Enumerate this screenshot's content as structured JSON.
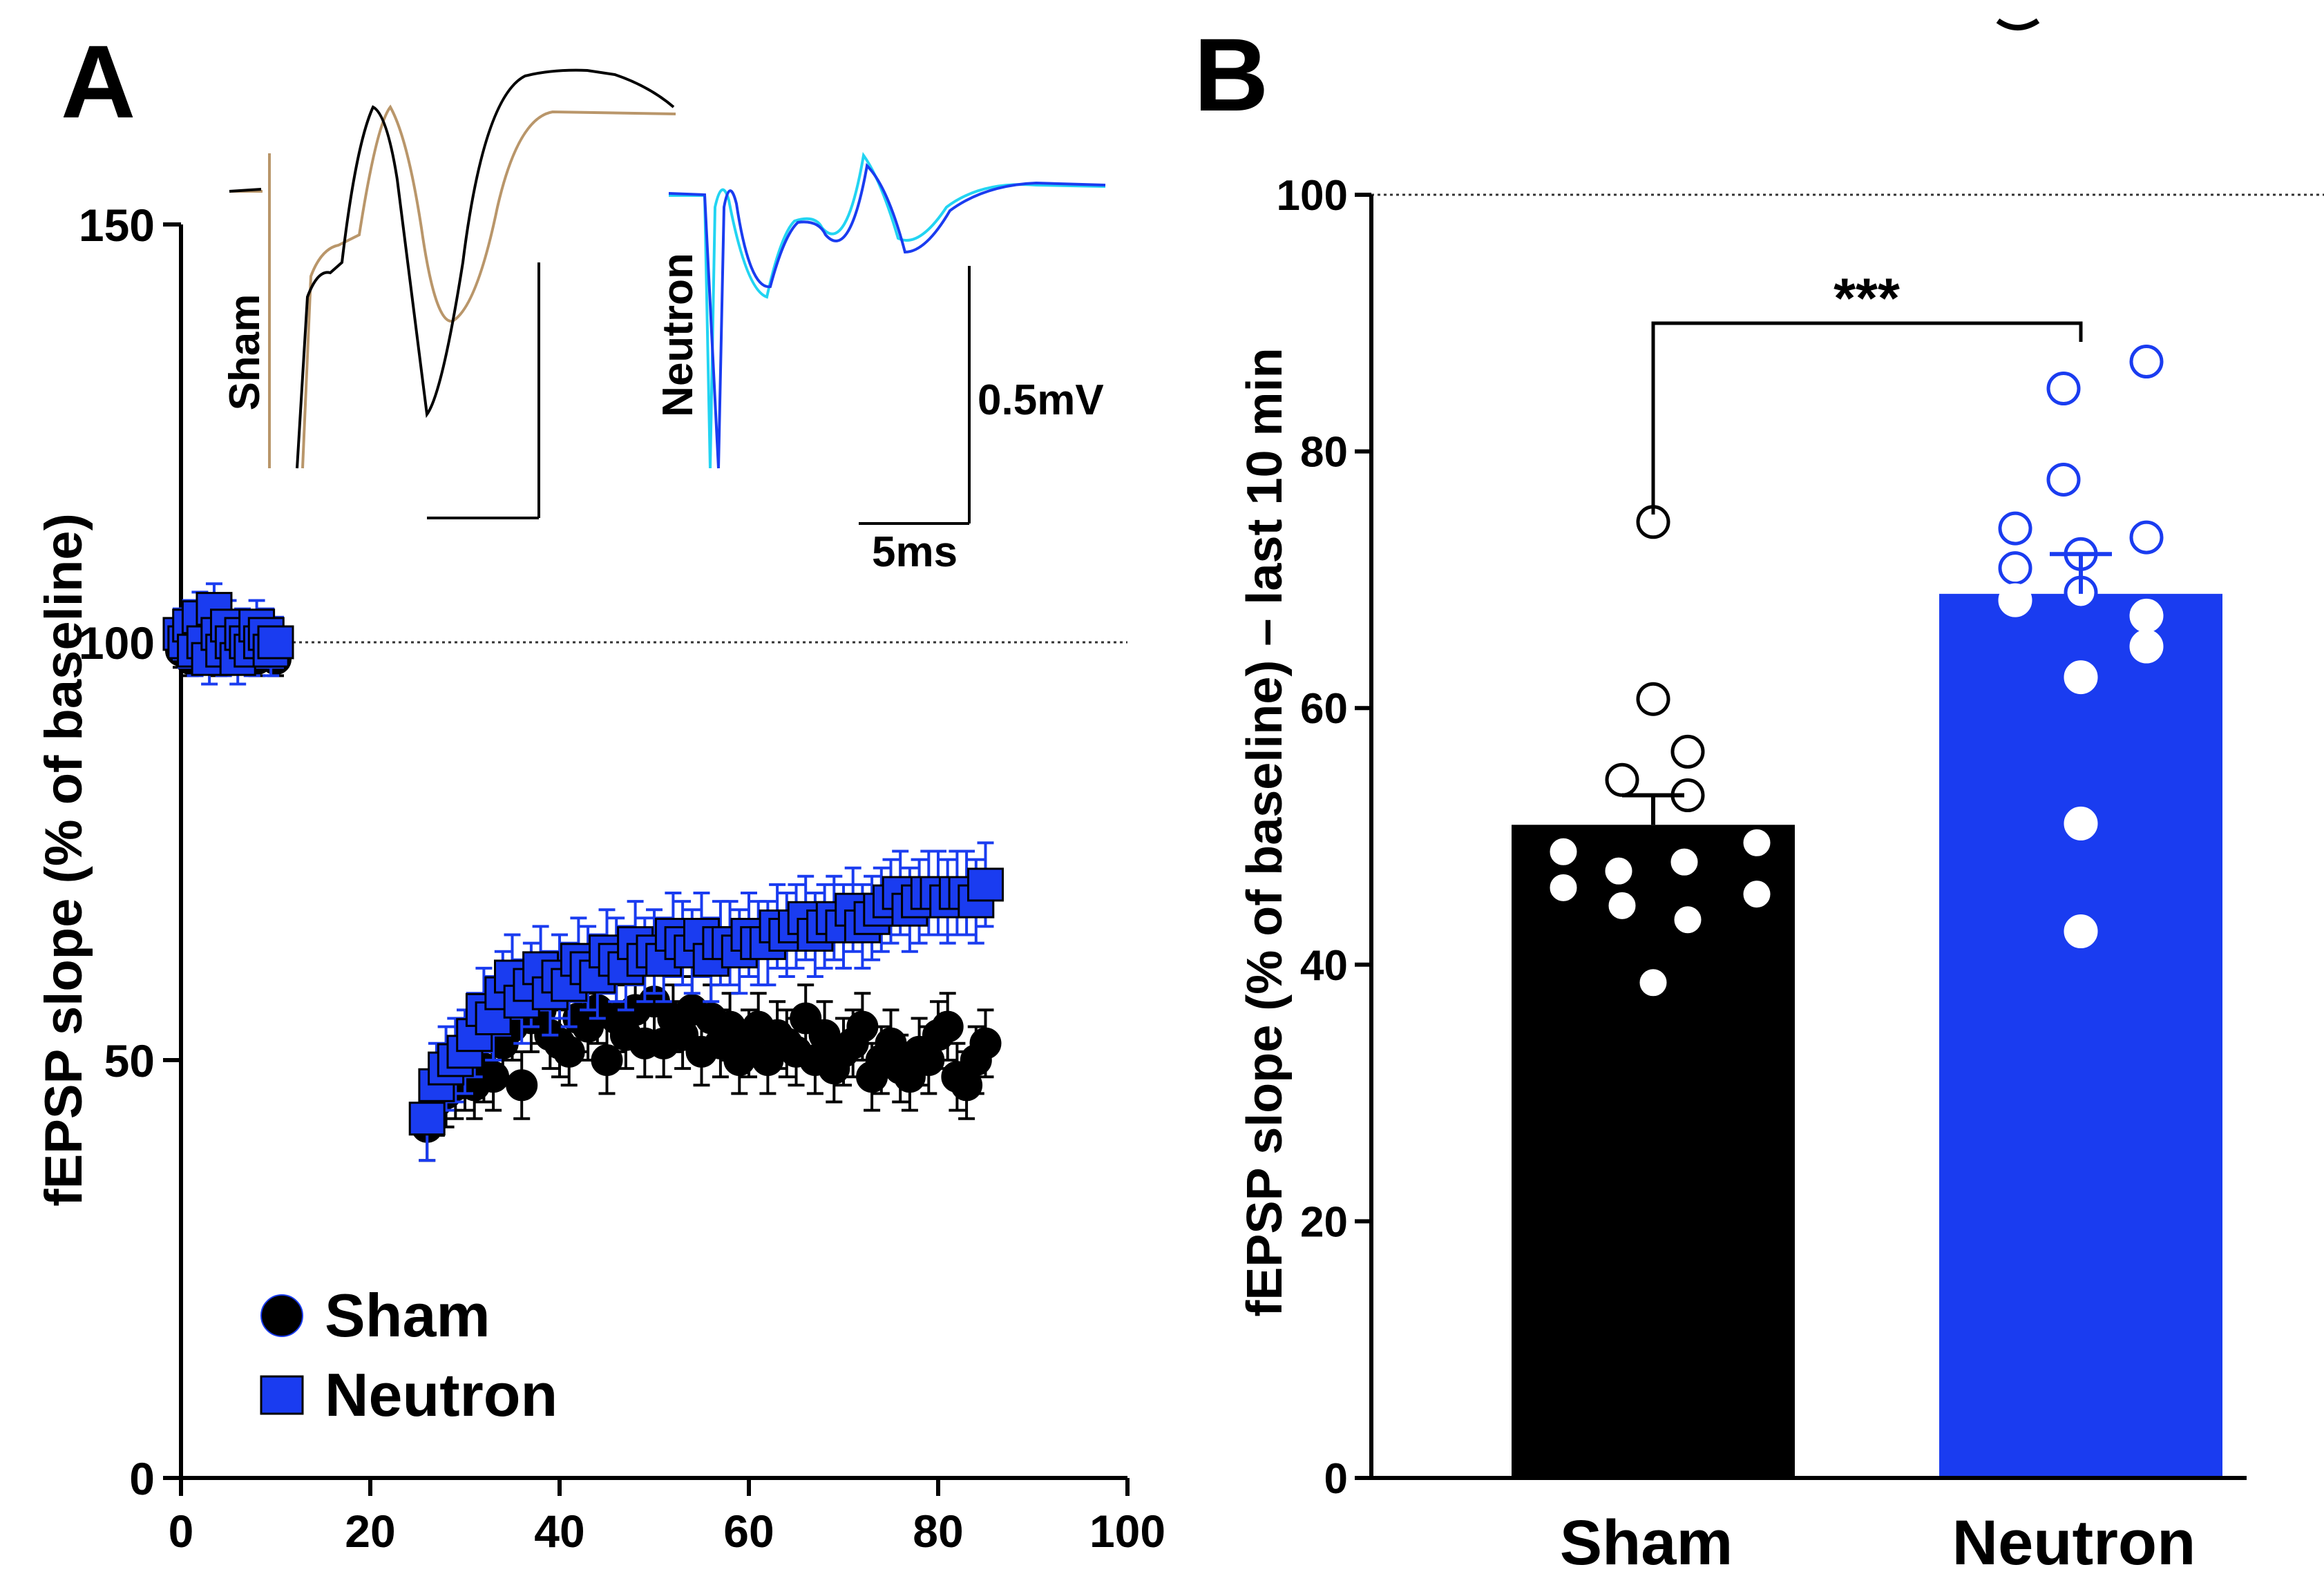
{
  "colors": {
    "sham": "#000000",
    "neutron": "#1a3cf0",
    "neutron_light": "#22d4f2",
    "sham_trace_alt": "#b9966a"
  },
  "panel_a": {
    "label": "A",
    "trace_labels": {
      "sham": "Sham",
      "neutron": "Neutron"
    },
    "scale_bar": {
      "voltage": "0.5mV",
      "time": "5ms"
    }
  },
  "panel_b": {
    "label": "B",
    "significance": "***"
  },
  "chart_data": [
    {
      "type": "scatter",
      "title": "",
      "xlabel": "",
      "ylabel": "fEPSP slope (% of baseline)",
      "xlim": [
        0,
        100
      ],
      "ylim": [
        0,
        150
      ],
      "xticks": [
        "0",
        "20",
        "40",
        "60",
        "80",
        "100"
      ],
      "yticks": [
        "0",
        "50",
        "100",
        "150"
      ],
      "reference_line": 100,
      "legend": {
        "position": "bottom-left",
        "entries": [
          "Sham",
          "Neutron"
        ]
      },
      "series": [
        {
          "name": "Sham",
          "marker": "circle",
          "x": [
            0,
            0.5,
            1,
            1.5,
            2,
            2.5,
            3,
            3.5,
            4,
            4.5,
            5,
            5.5,
            6,
            6.5,
            7,
            7.5,
            8,
            8.5,
            9,
            9.5,
            10,
            26,
            27,
            28,
            29,
            30,
            31,
            32,
            33,
            34,
            35,
            36,
            37,
            38,
            39,
            40,
            41,
            42,
            43,
            44,
            45,
            46,
            47,
            48,
            49,
            50,
            51,
            52,
            53,
            54,
            55,
            56,
            57,
            58,
            59,
            60,
            61,
            62,
            63,
            64,
            65,
            66,
            67,
            68,
            69,
            70,
            71,
            72,
            73,
            74,
            75,
            76,
            77,
            78,
            79,
            80,
            81,
            82,
            83,
            84,
            85
          ],
          "y": [
            99,
            100,
            98,
            101,
            100,
            99,
            100,
            101,
            98,
            100,
            99,
            100,
            101,
            99,
            100,
            100,
            98,
            99,
            100,
            99,
            98,
            42,
            45,
            46,
            47,
            48,
            47,
            49,
            48,
            52,
            54,
            47,
            55,
            56,
            53,
            52,
            51,
            55,
            54,
            56,
            50,
            55,
            53,
            56,
            52,
            57,
            52,
            55,
            53,
            56,
            51,
            55,
            52,
            54,
            50,
            52,
            54,
            50,
            53,
            52,
            51,
            55,
            50,
            53,
            49,
            51,
            52,
            54,
            48,
            50,
            52,
            49,
            48,
            51,
            50,
            53,
            54,
            48,
            47,
            50,
            52
          ],
          "errors": [
            2,
            2,
            2,
            2,
            2,
            2,
            2,
            2,
            2,
            2,
            2,
            2,
            2,
            2,
            2,
            2,
            2,
            2,
            2,
            2,
            2,
            4,
            4,
            4,
            4,
            4,
            4,
            4,
            4,
            4,
            4,
            4,
            4,
            4,
            4,
            4,
            4,
            4,
            4,
            4,
            4,
            4,
            4,
            4,
            4,
            4,
            4,
            4,
            4,
            4,
            4,
            4,
            4,
            4,
            4,
            4,
            4,
            4,
            4,
            4,
            4,
            4,
            4,
            4,
            4,
            4,
            4,
            4,
            4,
            4,
            4,
            4,
            4,
            4,
            4,
            4,
            4,
            4,
            4,
            4,
            4
          ]
        },
        {
          "name": "Neutron",
          "marker": "square",
          "x": [
            0,
            0.5,
            1,
            1.5,
            2,
            2.5,
            3,
            3.5,
            4,
            4.5,
            5,
            5.5,
            6,
            6.5,
            7,
            7.5,
            8,
            8.5,
            9,
            9.5,
            10,
            26,
            27,
            28,
            29,
            30,
            31,
            32,
            33,
            34,
            35,
            36,
            37,
            38,
            39,
            40,
            41,
            42,
            43,
            44,
            45,
            46,
            47,
            48,
            49,
            50,
            51,
            52,
            53,
            54,
            55,
            56,
            57,
            58,
            59,
            60,
            61,
            62,
            63,
            64,
            65,
            66,
            67,
            68,
            69,
            70,
            71,
            72,
            73,
            74,
            75,
            76,
            77,
            78,
            79,
            80,
            81,
            82,
            83,
            84,
            85
          ],
          "y": [
            101,
            100,
            102,
            99,
            103,
            100,
            98,
            104,
            101,
            99,
            102,
            100,
            98,
            101,
            100,
            99,
            102,
            100,
            101,
            99,
            100,
            43,
            47,
            49,
            50,
            51,
            53,
            56,
            55,
            58,
            60,
            57,
            59,
            61,
            58,
            60,
            59,
            62,
            61,
            60,
            63,
            62,
            61,
            64,
            62,
            63,
            62,
            65,
            64,
            63,
            65,
            62,
            64,
            64,
            63,
            65,
            64,
            64,
            66,
            65,
            66,
            67,
            65,
            66,
            67,
            66,
            68,
            66,
            67,
            68,
            69,
            70,
            68,
            69,
            70,
            70,
            69,
            70,
            70,
            69,
            71
          ],
          "errors": [
            3,
            3,
            3,
            3,
            3,
            3,
            3,
            3,
            3,
            3,
            3,
            3,
            3,
            3,
            3,
            3,
            3,
            3,
            3,
            3,
            3,
            5,
            5,
            5,
            5,
            5,
            5,
            5,
            5,
            5,
            5,
            5,
            5,
            5,
            5,
            5,
            5,
            5,
            5,
            5,
            5,
            5,
            5,
            5,
            5,
            5,
            5,
            5,
            5,
            5,
            5,
            5,
            5,
            5,
            5,
            5,
            5,
            5,
            5,
            5,
            5,
            5,
            5,
            5,
            5,
            5,
            5,
            5,
            5,
            5,
            5,
            5,
            5,
            5,
            5,
            5,
            5,
            5,
            5,
            5,
            5
          ]
        }
      ]
    },
    {
      "type": "bar",
      "title": "",
      "xlabel": "",
      "ylabel": "fEPSP slope (% of baseline) – last 10 min",
      "ylim": [
        0,
        100
      ],
      "yticks": [
        "0",
        "20",
        "40",
        "60",
        "80",
        "100"
      ],
      "reference_line": 100,
      "categories": [
        "Sham",
        "Neutron"
      ],
      "values": [
        50.9,
        68.9
      ],
      "sem": [
        2.3,
        3.1
      ],
      "points": [
        [
          74.5,
          60.7,
          56.6,
          54.4,
          53.2,
          49.5,
          48.8,
          48.0,
          47.3,
          46.0,
          45.5,
          44.6,
          43.5,
          38.6
        ],
        [
          87.0,
          84.9,
          77.8,
          74.0,
          73.3,
          72.0,
          70.9,
          69.0,
          68.4,
          67.2,
          64.8,
          62.4,
          51.0,
          42.6
        ]
      ]
    }
  ]
}
